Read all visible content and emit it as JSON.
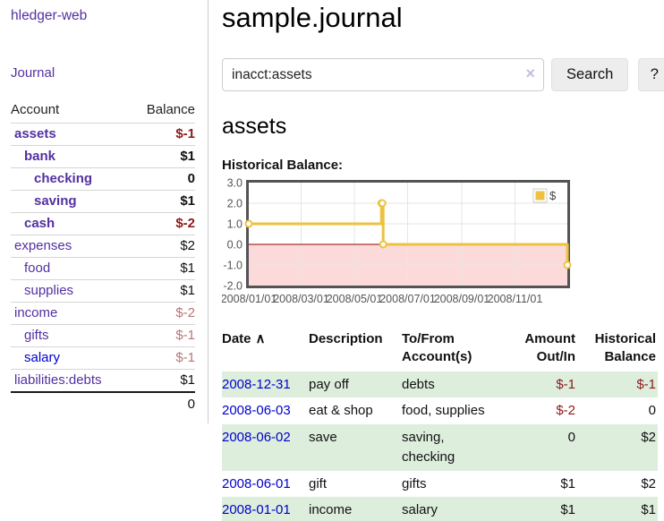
{
  "app": {
    "title": "hledger-web",
    "nav_journal": "Journal"
  },
  "sidebar": {
    "columns": {
      "account": "Account",
      "balance": "Balance"
    },
    "accounts": [
      {
        "name": "assets",
        "depth": 1,
        "bold": true,
        "balance": "$-1",
        "balance_style": "negstrong"
      },
      {
        "name": "bank",
        "depth": 2,
        "bold": true,
        "balance": "$1",
        "balance_style": "pos"
      },
      {
        "name": "checking",
        "depth": 3,
        "bold": true,
        "balance": "0",
        "balance_style": "pos"
      },
      {
        "name": "saving",
        "depth": 3,
        "bold": true,
        "balance": "$1",
        "balance_style": "pos"
      },
      {
        "name": "cash",
        "depth": 2,
        "bold": true,
        "balance": "$-2",
        "balance_style": "negstrong"
      },
      {
        "name": "expenses",
        "depth": 1,
        "bold": false,
        "balance": "$2",
        "balance_style": "pos"
      },
      {
        "name": "food",
        "depth": 2,
        "bold": false,
        "balance": "$1",
        "balance_style": "pos"
      },
      {
        "name": "supplies",
        "depth": 2,
        "bold": false,
        "balance": "$1",
        "balance_style": "pos"
      },
      {
        "name": "income",
        "depth": 1,
        "bold": false,
        "balance": "$-2",
        "balance_style": "negsoft"
      },
      {
        "name": "gifts",
        "depth": 2,
        "bold": false,
        "balance": "$-1",
        "balance_style": "negsoft"
      },
      {
        "name": "salary",
        "depth": 2,
        "bold": false,
        "link_color": "blue",
        "balance": "$-1",
        "balance_style": "negsoft"
      },
      {
        "name": "liabilities:debts",
        "depth": 1,
        "bold": false,
        "balance": "$1",
        "balance_style": "pos"
      }
    ],
    "total": "0"
  },
  "main": {
    "title": "sample.journal",
    "account_heading": "assets"
  },
  "search": {
    "query": "inacct:assets",
    "clear_icon": "×",
    "button": "Search",
    "help_button": "?"
  },
  "chart_data": {
    "type": "line",
    "step": true,
    "title": "Historical Balance:",
    "series": [
      {
        "name": "$",
        "color": "#edc240",
        "points": [
          [
            "2008-01-01",
            1
          ],
          [
            "2008-06-01",
            2
          ],
          [
            "2008-06-02",
            2
          ],
          [
            "2008-06-03",
            0
          ],
          [
            "2008-12-31",
            -1
          ]
        ]
      }
    ],
    "x_ticks": [
      "2008/01/01",
      "2008/03/01",
      "2008/05/01",
      "2008/07/01",
      "2008/09/01",
      "2008/11/01"
    ],
    "y_ticks": [
      3.0,
      2.0,
      1.0,
      0.0,
      -1.0,
      -2.0
    ],
    "xlim": [
      "2008-01-01",
      "2008-12-31"
    ],
    "ylim": [
      -2,
      3
    ],
    "grid": true,
    "legend": "$",
    "legend_position": "top-right",
    "negative_fill": "#fcdada",
    "zero_line_color": "#8b0000",
    "border_color": "#545454",
    "grid_color": "#e6e6e6"
  },
  "register": {
    "columns": [
      {
        "line1": "Date",
        "sort_icon": "∧",
        "sortable": true
      },
      {
        "line1": "Description"
      },
      {
        "line1": "To/From",
        "line2": "Account(s)"
      },
      {
        "line1": "Amount",
        "line2": "Out/In",
        "numeric": true
      },
      {
        "line1": "Historical",
        "line2": "Balance",
        "numeric": true
      }
    ],
    "rows": [
      {
        "date": "2008-12-31",
        "description": "pay off",
        "accounts": "debts",
        "amount": "$-1",
        "amount_neg": true,
        "balance": "$-1",
        "balance_neg": true,
        "shaded": true
      },
      {
        "date": "2008-06-03",
        "description": "eat & shop",
        "accounts": "food, supplies",
        "amount": "$-2",
        "amount_neg": true,
        "balance": "0",
        "balance_neg": false,
        "shaded": false
      },
      {
        "date": "2008-06-02",
        "description": "save",
        "accounts": "saving, checking",
        "amount": "0",
        "amount_neg": false,
        "balance": "$2",
        "balance_neg": false,
        "shaded": true
      },
      {
        "date": "2008-06-01",
        "description": "gift",
        "accounts": "gifts",
        "amount": "$1",
        "amount_neg": false,
        "balance": "$2",
        "balance_neg": false,
        "shaded": false
      },
      {
        "date": "2008-01-01",
        "description": "income",
        "accounts": "salary",
        "amount": "$1",
        "amount_neg": false,
        "balance": "$1",
        "balance_neg": false,
        "shaded": true
      }
    ]
  }
}
